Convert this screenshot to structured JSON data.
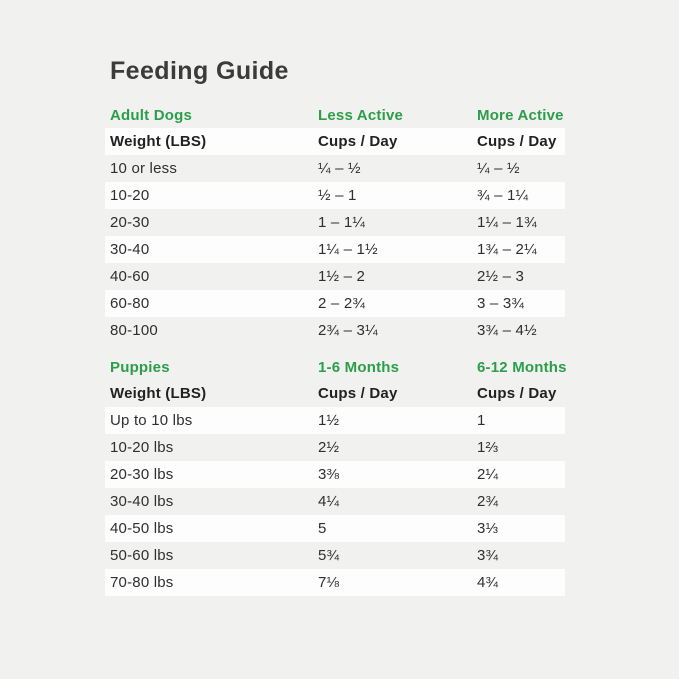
{
  "page": {
    "title": "Feeding Guide",
    "background": "#f1f1ef",
    "row_highlight": "#fdfdfd",
    "accent_green": "#2c9e4b",
    "title_color": "#3b3b3b"
  },
  "tables": [
    {
      "section": {
        "name": "Adult Dogs",
        "col2": "Less Active",
        "col3": "More Active"
      },
      "subheader": {
        "col1": "Weight (LBS)",
        "col2": "Cups / Day",
        "col3": "Cups / Day"
      },
      "subheader_white": true,
      "rows": [
        {
          "cells": [
            "10 or less",
            "¼ – ½",
            "¼ – ½"
          ]
        },
        {
          "cells": [
            "10-20",
            "½ – 1",
            "¾ – 1¼"
          ]
        },
        {
          "cells": [
            "20-30",
            "1 – 1¼",
            "1¼ – 1¾"
          ]
        },
        {
          "cells": [
            "30-40",
            "1¼ – 1½",
            "1¾ – 2¼"
          ]
        },
        {
          "cells": [
            "40-60",
            "1½ – 2",
            "2½ – 3"
          ]
        },
        {
          "cells": [
            "60-80",
            "2 – 2¾",
            "3 – 3¾"
          ]
        },
        {
          "cells": [
            "80-100",
            "2¾ – 3¼",
            "3¾ – 4½"
          ]
        }
      ]
    },
    {
      "section": {
        "name": "Puppies",
        "col2": "1-6 Months",
        "col3": "6-12 Months"
      },
      "subheader": {
        "col1": "Weight (LBS)",
        "col2": "Cups / Day",
        "col3": "Cups / Day"
      },
      "subheader_white": false,
      "rows": [
        {
          "cells": [
            "Up to 10 lbs",
            "1½",
            "1"
          ]
        },
        {
          "cells": [
            "10-20 lbs",
            "2½",
            "1⅔"
          ]
        },
        {
          "cells": [
            "20-30 lbs",
            "3⅜",
            "2¼"
          ]
        },
        {
          "cells": [
            "30-40 lbs",
            "4¼",
            "2¾"
          ]
        },
        {
          "cells": [
            "40-50 lbs",
            "5",
            "3⅓"
          ]
        },
        {
          "cells": [
            "50-60 lbs",
            "5¾",
            "3¾"
          ]
        },
        {
          "cells": [
            "70-80 lbs",
            "7⅛",
            "4¾"
          ]
        }
      ]
    }
  ],
  "chart_data": [
    {
      "type": "table",
      "title": "Adult Dogs",
      "columns": [
        "Weight (LBS)",
        "Less Active Cups / Day",
        "More Active Cups / Day"
      ],
      "rows": [
        [
          "10 or less",
          "¼ – ½",
          "¼ – ½"
        ],
        [
          "10-20",
          "½ – 1",
          "¾ – 1¼"
        ],
        [
          "20-30",
          "1 – 1¼",
          "1¼ – 1¾"
        ],
        [
          "30-40",
          "1¼ – 1½",
          "1¾ – 2¼"
        ],
        [
          "40-60",
          "1½ – 2",
          "2½ – 3"
        ],
        [
          "60-80",
          "2 – 2¾",
          "3 – 3¾"
        ],
        [
          "80-100",
          "2¾ – 3¼",
          "3¾ – 4½"
        ]
      ]
    },
    {
      "type": "table",
      "title": "Puppies",
      "columns": [
        "Weight (LBS)",
        "1-6 Months Cups / Day",
        "6-12 Months Cups / Day"
      ],
      "rows": [
        [
          "Up to 10 lbs",
          "1½",
          "1"
        ],
        [
          "10-20 lbs",
          "2½",
          "1⅔"
        ],
        [
          "20-30 lbs",
          "3⅜",
          "2¼"
        ],
        [
          "30-40 lbs",
          "4¼",
          "2¾"
        ],
        [
          "40-50 lbs",
          "5",
          "3⅓"
        ],
        [
          "50-60 lbs",
          "5¾",
          "3¾"
        ],
        [
          "70-80 lbs",
          "7⅛",
          "4¾"
        ]
      ]
    }
  ]
}
